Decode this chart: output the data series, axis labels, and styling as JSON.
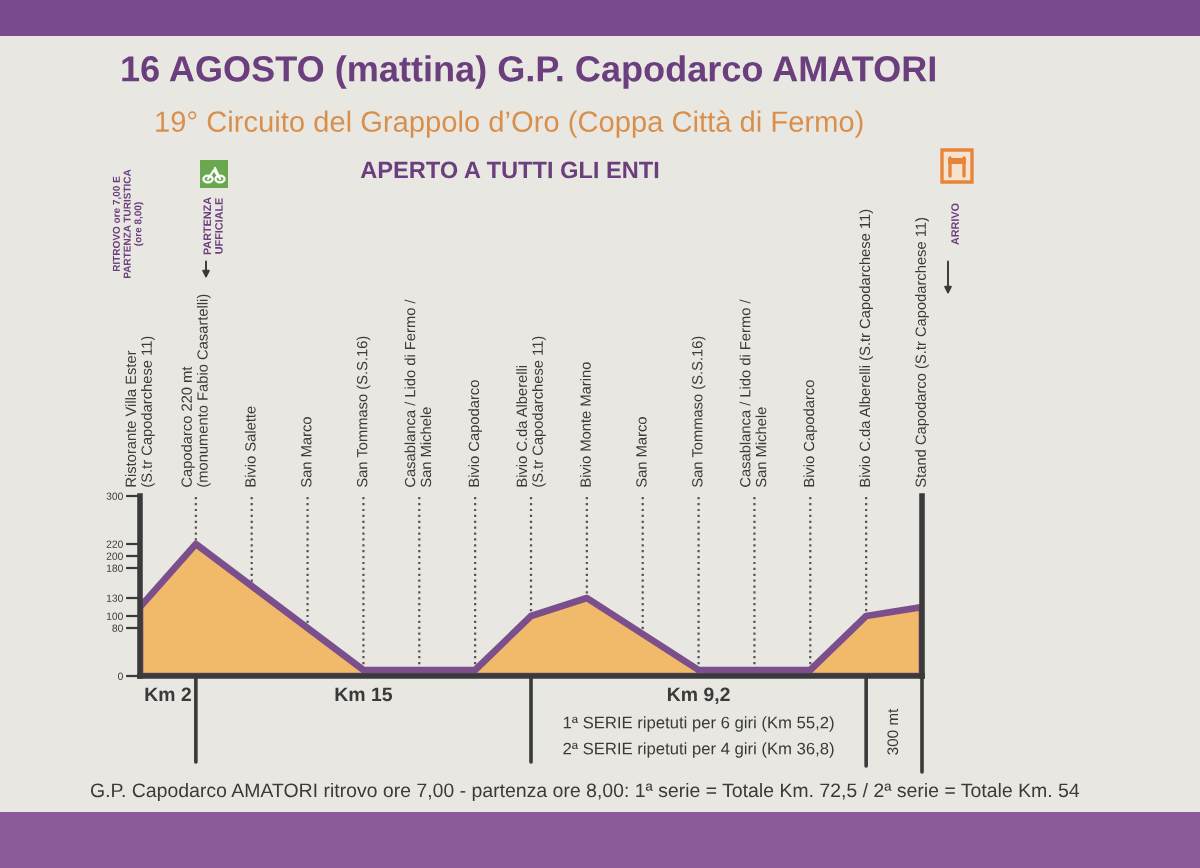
{
  "chart_data": {
    "type": "area",
    "title": "16 AGOSTO (mattina) G.P. Capodarco AMATORI",
    "subtitle": "19° Circuito del Grappolo d’Oro (Coppa Città di Fermo)",
    "categories": [
      "Ristorante Villa Ester\n(S.tr Capodarchese 11)",
      "Capodarco 220 mt\n(monumento Fabio Casartelli)",
      "Bivio Salette",
      "San Marco",
      "San Tommaso (S.S.16)",
      "Casablanca / Lido di Fermo /\nSan Michele",
      "Bivio Capodarco",
      "Bivio C.da Alberelli\n(S.tr Capodarchese 11)",
      "Bivio Monte Marino",
      "San Marco",
      "San Tommaso (S.S.16)",
      "Casablanca / Lido di Fermo /\nSan Michele",
      "Bivio Capodarco",
      "Bivio C.da Alberelli (S.tr Capodarchese 11)",
      "Stand Capodarco (S.tr Capodarchese 11)"
    ],
    "series": [
      {
        "color": "#f1b96a",
        "values": [
          115,
          220,
          150,
          80,
          10,
          10,
          10,
          100,
          130,
          70,
          10,
          10,
          10,
          100,
          115
        ]
      }
    ],
    "ylim": [
      0,
      300
    ],
    "yticks": [
      0,
      80,
      100,
      130,
      180,
      200,
      220,
      300
    ],
    "grid": "x",
    "annotations": [
      "APERTO A TUTTI GLI ENTI",
      "RITROVO ore 7,00 E\nPARTENZA TURISTICA\n(ore 8,00)",
      "PARTENZA\nUFFICIALE",
      "ARRIVO",
      "Km 2",
      "Km 15",
      "Km 9,2",
      "1ª SERIE ripetuti per 6 giri (Km 55,2)",
      "2ª SERIE ripetuti per 4 giri (Km 36,8)",
      "300 mt",
      "G.P. Capodarco AMATORI ritrovo ore 7,00 - partenza ore 8,00: 1ª serie = Totale Km. 72,5 / 2ª serie = Totale Km. 54"
    ]
  }
}
